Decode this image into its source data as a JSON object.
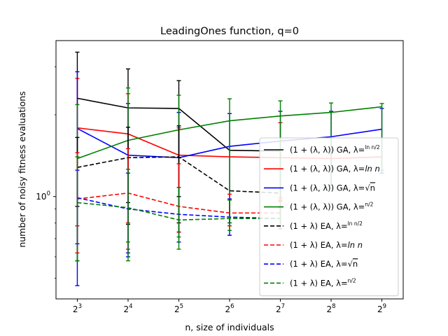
{
  "chart_data": {
    "type": "line",
    "title": "LeadingOnes function, q=0",
    "xlabel": "n, size of individuals",
    "ylabel": "number of noisy fitness evaluations",
    "x_tick_labels": [
      {
        "base": "2",
        "exp": "3"
      },
      {
        "base": "2",
        "exp": "4"
      },
      {
        "base": "2",
        "exp": "5"
      },
      {
        "base": "2",
        "exp": "6"
      },
      {
        "base": "2",
        "exp": "7"
      },
      {
        "base": "2",
        "exp": "8"
      },
      {
        "base": "2",
        "exp": "9"
      }
    ],
    "x": [
      8,
      16,
      32,
      64,
      128,
      256,
      512
    ],
    "y_scale": "log",
    "ylim": [
      0.42,
      3.75
    ],
    "y_tick_labels": [
      {
        "value": 1.0,
        "label": "10",
        "exp": "0"
      }
    ],
    "legend_position": "lower-right",
    "series": [
      {
        "name": "(1+(λ,λ)) GA, λ=ln n/2",
        "legend_pre": "(1 + (λ, λ)) GA, λ=",
        "legend_frac": [
          "ln n",
          "2"
        ],
        "color": "#000000",
        "dash": "solid",
        "values": [
          2.3,
          2.12,
          2.11,
          1.48,
          1.47,
          null,
          null
        ],
        "err_low": [
          0.58,
          0.79,
          0.8,
          null,
          null,
          null,
          null
        ],
        "err_high": [
          3.4,
          2.95,
          2.67,
          null,
          null,
          null,
          null
        ]
      },
      {
        "name": "(1+(λ,λ)) GA, λ=ln n",
        "legend_pre": "(1 + (λ, λ)) GA, λ=",
        "legend_tail": "ln n",
        "color": "#ff0000",
        "dash": "solid",
        "values": [
          1.79,
          1.7,
          1.42,
          1.4,
          1.39,
          1.38,
          1.4
        ],
        "err_low": [
          0.78,
          0.8,
          0.74,
          null,
          0.97,
          null,
          null
        ],
        "err_high": [
          2.72,
          2.39,
          1.79,
          null,
          1.87,
          null,
          null
        ]
      },
      {
        "name": "(1+(λ,λ)) GA, λ=√n",
        "legend_pre": "(1 + (λ, λ)) GA, λ=",
        "legend_sqrt": "n",
        "color": "#0000ff",
        "dash": "solid",
        "values": [
          1.78,
          1.42,
          1.39,
          1.53,
          1.6,
          1.66,
          1.77
        ],
        "err_low": [
          0.47,
          0.62,
          0.74,
          0.8,
          0.96,
          1.1,
          1.22
        ],
        "err_high": [
          2.88,
          2.2,
          2.04,
          2.02,
          2.06,
          2.06,
          2.11
        ]
      },
      {
        "name": "(1+(λ,λ)) GA, λ=n/2",
        "legend_pre": "(1 + (λ, λ)) GA, λ=",
        "legend_frac": [
          "n",
          "2"
        ],
        "color": "#008000",
        "dash": "solid",
        "values": [
          1.38,
          1.61,
          1.76,
          1.9,
          1.98,
          2.04,
          2.14
        ],
        "err_low": [
          0.58,
          0.68,
          0.71,
          0.8,
          0.96,
          1.1,
          1.25
        ],
        "err_high": [
          2.18,
          2.51,
          2.36,
          2.29,
          2.25,
          2.21,
          2.2
        ]
      },
      {
        "name": "(1+λ) EA, λ=ln n/2",
        "legend_pre": "(1 + λ) EA, λ=",
        "legend_frac": [
          "ln n",
          "2"
        ],
        "color": "#000000",
        "dash": "dashed",
        "values": [
          1.28,
          1.39,
          1.4,
          1.05,
          1.03,
          null,
          null
        ],
        "err_low": [
          0.92,
          0.95,
          1.0,
          null,
          null,
          null,
          null
        ],
        "err_high": [
          1.65,
          1.8,
          1.82,
          null,
          null,
          null,
          null
        ]
      },
      {
        "name": "(1+λ) EA, λ=ln n",
        "legend_pre": "(1 + λ) EA, λ=",
        "legend_tail": "ln n",
        "color": "#ff0000",
        "dash": "dashed",
        "values": [
          0.98,
          1.03,
          0.92,
          0.87,
          0.87,
          null,
          null
        ],
        "err_low": [
          0.62,
          0.64,
          0.74,
          0.78,
          0.78,
          null,
          null
        ],
        "err_high": [
          1.45,
          1.5,
          1.32,
          1.02,
          0.99,
          null,
          null
        ]
      },
      {
        "name": "(1+λ) EA, λ=√n",
        "legend_pre": "(1 + λ) EA, λ=",
        "legend_sqrt": "n",
        "color": "#0000ff",
        "dash": "dashed",
        "values": [
          0.99,
          0.9,
          0.86,
          0.84,
          0.83,
          null,
          null
        ],
        "err_low": [
          0.67,
          0.6,
          0.68,
          0.72,
          0.76,
          null,
          null
        ],
        "err_high": [
          1.25,
          1.22,
          1.08,
          0.98,
          0.92,
          null,
          null
        ]
      },
      {
        "name": "(1+λ) EA, λ=n/2",
        "legend_pre": "(1 + λ) EA, λ=",
        "legend_frac": [
          "n",
          "2"
        ],
        "color": "#008000",
        "dash": "dashed",
        "values": [
          0.95,
          0.91,
          0.82,
          0.83,
          0.83,
          null,
          null
        ],
        "err_low": [
          0.58,
          0.58,
          0.64,
          0.75,
          0.76,
          null,
          null
        ],
        "err_high": [
          1.4,
          1.26,
          1.08,
          0.97,
          0.91,
          null,
          null
        ]
      }
    ]
  }
}
